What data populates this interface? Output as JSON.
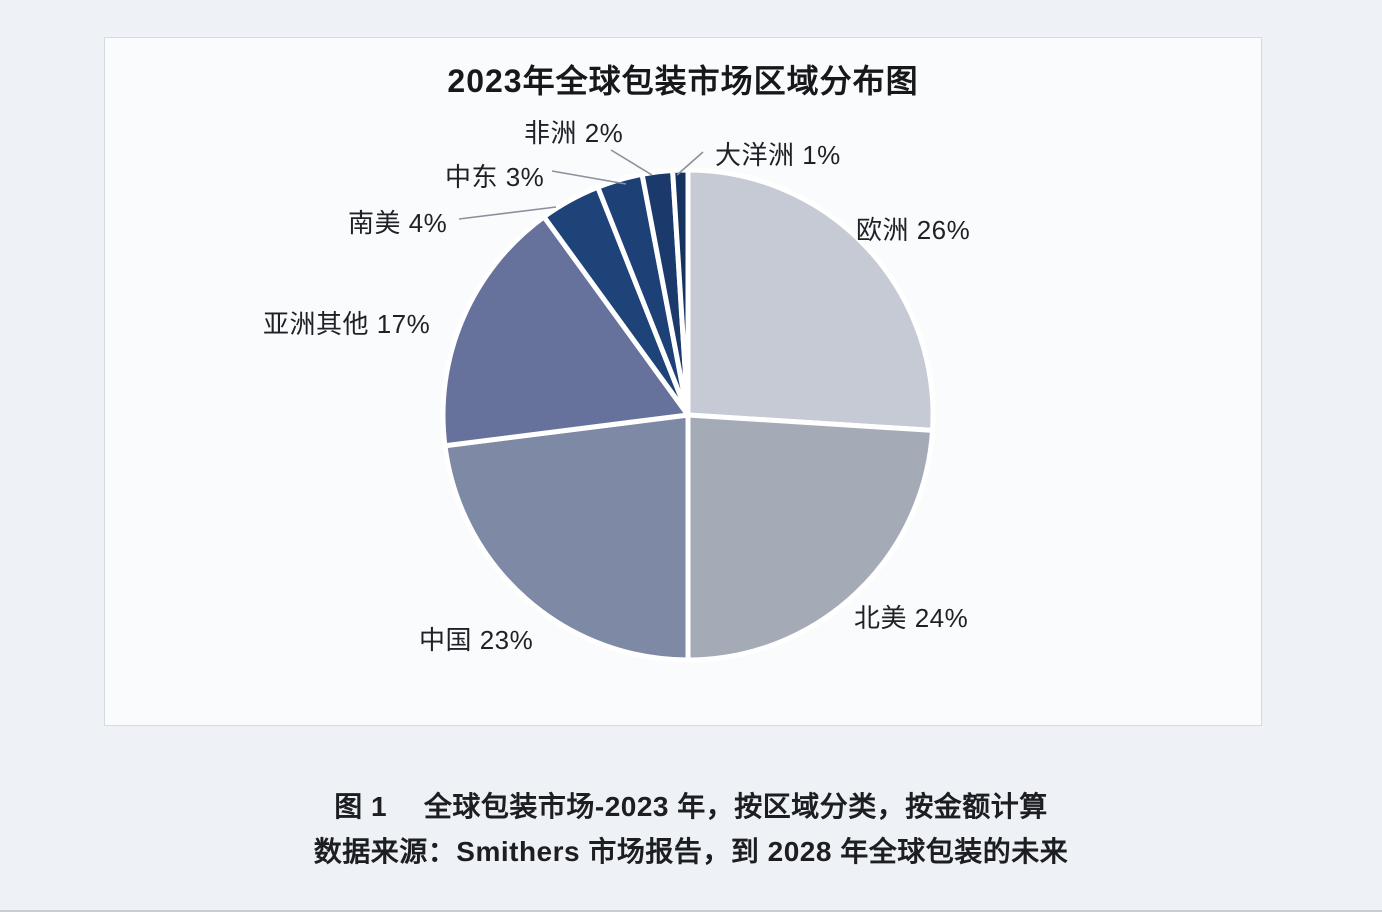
{
  "page": {
    "background_color": "#eef1f5",
    "card_background_color": "#fafbfd",
    "card_border_color": "#d6dbe1"
  },
  "chart_data": {
    "type": "pie",
    "title": "2023年全球包装市场区域分布图",
    "direction": "clockwise",
    "start_angle_deg": 0,
    "legend_position": "none",
    "labels_outside": true,
    "slice_gap_color": "#ffffff",
    "slices": [
      {
        "name": "欧洲",
        "value": 26,
        "label": "欧洲 26%",
        "color": "#c6cad4"
      },
      {
        "name": "北美",
        "value": 24,
        "label": "北美 24%",
        "color": "#a4abb7"
      },
      {
        "name": "中国",
        "value": 23,
        "label": "中国 23%",
        "color": "#7e89a5"
      },
      {
        "name": "亚洲其他",
        "value": 17,
        "label": "亚洲其他 17%",
        "color": "#66729b"
      },
      {
        "name": "南美",
        "value": 4,
        "label": "南美 4%",
        "color": "#1d4378"
      },
      {
        "name": "中东",
        "value": 3,
        "label": "中东 3%",
        "color": "#1d4076"
      },
      {
        "name": "非洲",
        "value": 2,
        "label": "非洲 2%",
        "color": "#1b3a6b"
      },
      {
        "name": "大洋洲",
        "value": 1,
        "label": "大洋洲 1%",
        "color": "#16325e"
      }
    ]
  },
  "caption": {
    "line1": "图 1　 全球包装市场-2023 年，按区域分类，按金额计算",
    "line2": "数据来源：Smithers 市场报告，到 2028 年全球包装的未来"
  }
}
